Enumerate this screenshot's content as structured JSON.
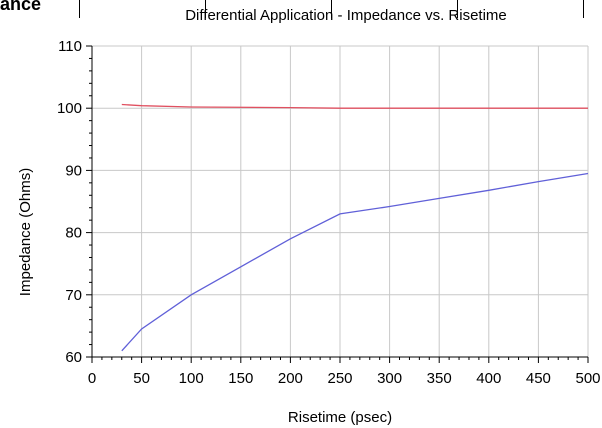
{
  "header_fragment": "ance",
  "chart_data": {
    "type": "line",
    "title": "Differential Application - Impedance vs. Risetime",
    "xlabel": "Risetime (psec)",
    "ylabel": "Impedance (Ohms)",
    "xlim": [
      0,
      500
    ],
    "ylim": [
      60,
      110
    ],
    "xticks": [
      "0",
      "50",
      "100",
      "150",
      "200",
      "250",
      "300",
      "350",
      "400",
      "450",
      "500"
    ],
    "yticks": [
      "60",
      "70",
      "80",
      "90",
      "100",
      "110"
    ],
    "grid": true,
    "series": [
      {
        "color": "#e05060",
        "x": [
          30,
          50,
          100,
          200,
          250,
          300,
          400,
          500
        ],
        "y": [
          100.6,
          100.4,
          100.2,
          100.1,
          100.0,
          100.0,
          100.0,
          100.0
        ]
      },
      {
        "color": "#6060d8",
        "x": [
          30,
          50,
          100,
          150,
          200,
          250,
          300,
          350,
          400,
          450,
          500
        ],
        "y": [
          61.0,
          64.5,
          70.0,
          74.5,
          79.0,
          83.0,
          84.2,
          85.5,
          86.8,
          88.2,
          89.5
        ]
      }
    ]
  }
}
